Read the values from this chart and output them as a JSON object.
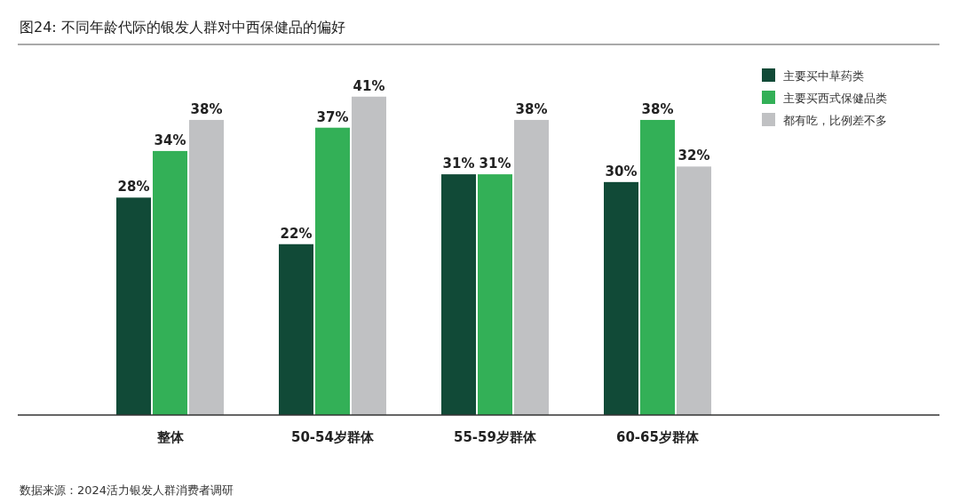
{
  "chart_data": {
    "type": "bar",
    "title": "图24: 不同年龄代际的银发人群对中西保健品的偏好",
    "categories": [
      "整体",
      "50-54岁群体",
      "55-59岁群体",
      "60-65岁群体"
    ],
    "series": [
      {
        "name": "主要买中草药类",
        "color": "#114a37",
        "values": [
          28,
          22,
          31,
          30
        ],
        "value_labels": [
          "28%",
          "22%",
          "31%",
          "30%"
        ]
      },
      {
        "name": "主要买西式保健品类",
        "color": "#33b057",
        "values": [
          34,
          37,
          31,
          38
        ],
        "value_labels": [
          "34%",
          "37%",
          "31%",
          "38%"
        ]
      },
      {
        "name": "都有吃，比例差不多",
        "color": "#c0c1c3",
        "values": [
          38,
          41,
          38,
          32
        ],
        "value_labels": [
          "38%",
          "41%",
          "38%",
          "32%"
        ]
      }
    ],
    "legend": "top right",
    "annotations": [
      "数据来源：2024活力银发人群消费者调研"
    ]
  }
}
